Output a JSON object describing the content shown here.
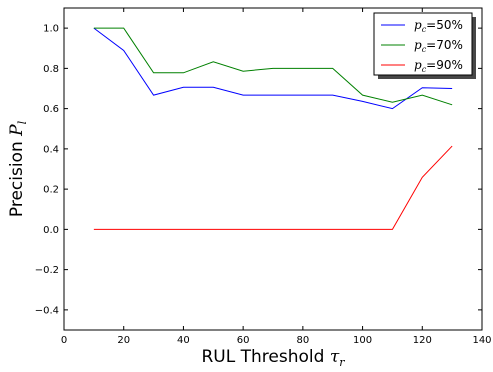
{
  "chart_data": {
    "type": "line",
    "title": "",
    "xlabel": {
      "text": "RUL Threshold ",
      "math": "τ",
      "sub": "r"
    },
    "ylabel": {
      "text": "Precision ",
      "math": "P",
      "sub": "l"
    },
    "xlim": [
      0,
      140
    ],
    "ylim": [
      -0.5,
      1.1
    ],
    "xticks": [
      0,
      20,
      40,
      60,
      80,
      100,
      120,
      140
    ],
    "yticks": [
      -0.4,
      -0.2,
      0.0,
      0.2,
      0.4,
      0.6,
      0.8,
      1.0
    ],
    "xtick_labels": [
      "0",
      "20",
      "40",
      "60",
      "80",
      "100",
      "120",
      "140"
    ],
    "ytick_labels": [
      "−0.4",
      "−0.2",
      "0.0",
      "0.2",
      "0.4",
      "0.6",
      "0.8",
      "1.0"
    ],
    "grid": false,
    "legend_position": "top-right",
    "x": [
      10,
      20,
      30,
      40,
      50,
      60,
      70,
      80,
      90,
      100,
      110,
      120,
      130
    ],
    "series": [
      {
        "name": "=50%",
        "name_math": "p",
        "name_sub": "c",
        "color": "#0000ff",
        "values": [
          1.0,
          0.889,
          0.667,
          0.706,
          0.706,
          0.667,
          0.667,
          0.667,
          0.667,
          0.636,
          0.6,
          0.704,
          0.7
        ]
      },
      {
        "name": "=70%",
        "name_math": "p",
        "name_sub": "c",
        "color": "#008000",
        "values": [
          1.0,
          1.0,
          0.778,
          0.778,
          0.833,
          0.786,
          0.8,
          0.8,
          0.8,
          0.667,
          0.632,
          0.667,
          0.619
        ]
      },
      {
        "name": "=90%",
        "name_math": "p",
        "name_sub": "c",
        "color": "#ff0000",
        "values": [
          0.0,
          0.0,
          0.0,
          0.0,
          0.0,
          0.0,
          0.0,
          0.0,
          0.0,
          0.0,
          0.0,
          0.259,
          0.414
        ]
      }
    ]
  }
}
